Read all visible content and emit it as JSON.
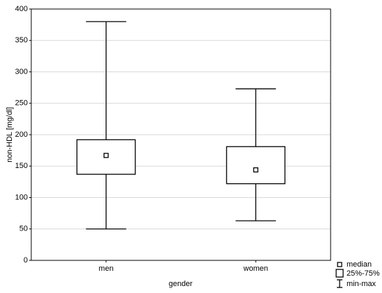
{
  "chart_data": {
    "type": "box",
    "x_label": "gender",
    "y_label": "non-HDL [mg/dl]",
    "categories": [
      "men",
      "women"
    ],
    "min": [
      50,
      63
    ],
    "q1": [
      137,
      122
    ],
    "median": [
      167,
      144
    ],
    "q3": [
      192,
      181
    ],
    "max": [
      380,
      273
    ],
    "ylim": [
      0,
      400
    ],
    "yticks": [
      0,
      50,
      100,
      150,
      200,
      250,
      300,
      350,
      400
    ],
    "grid": true,
    "legend": {
      "median": "median",
      "box": "25%-75%",
      "whisker": "min-max",
      "position": "bottom-right"
    }
  }
}
